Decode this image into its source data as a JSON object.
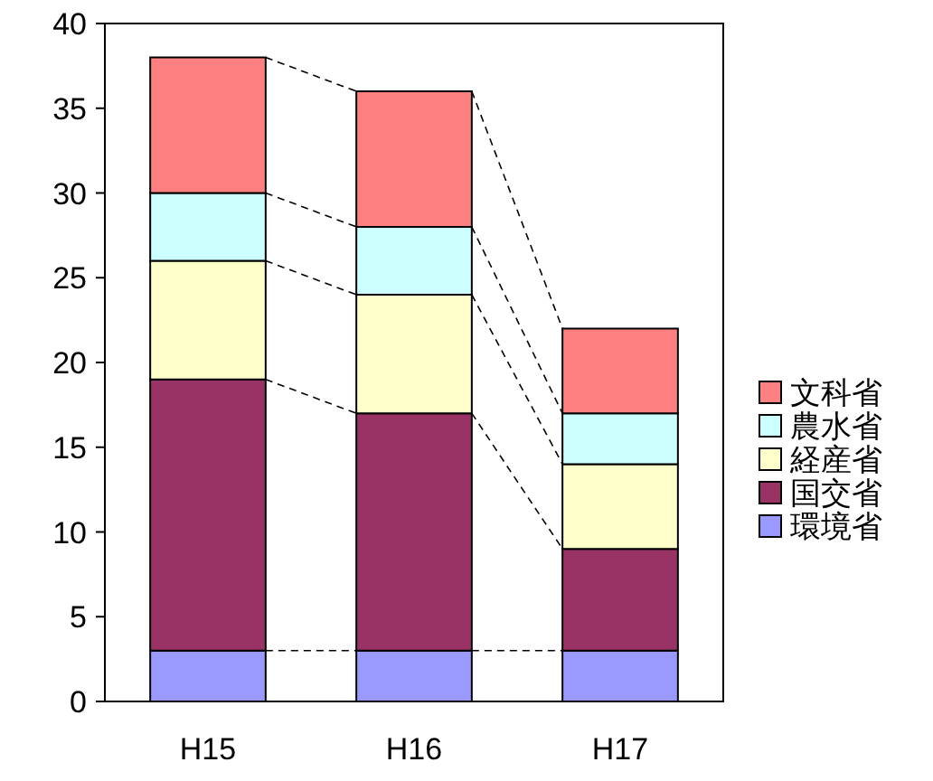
{
  "chart_data": {
    "type": "bar",
    "stacked": true,
    "categories": [
      "H15",
      "H16",
      "H17"
    ],
    "series": [
      {
        "name": "環境省",
        "color": "#9999ff",
        "values": [
          3,
          3,
          3
        ]
      },
      {
        "name": "国交省",
        "color": "#993366",
        "values": [
          16,
          14,
          6
        ]
      },
      {
        "name": "経産省",
        "color": "#ffffcc",
        "values": [
          7,
          7,
          5
        ]
      },
      {
        "name": "農水省",
        "color": "#ccffff",
        "values": [
          4,
          4,
          3
        ]
      },
      {
        "name": "文科省",
        "color": "#ff8080",
        "values": [
          8,
          8,
          5
        ]
      }
    ],
    "ylim": [
      0,
      40
    ],
    "yticks": [
      0,
      5,
      10,
      15,
      20,
      25,
      30,
      35,
      40
    ],
    "grid": false,
    "legend": "right"
  }
}
